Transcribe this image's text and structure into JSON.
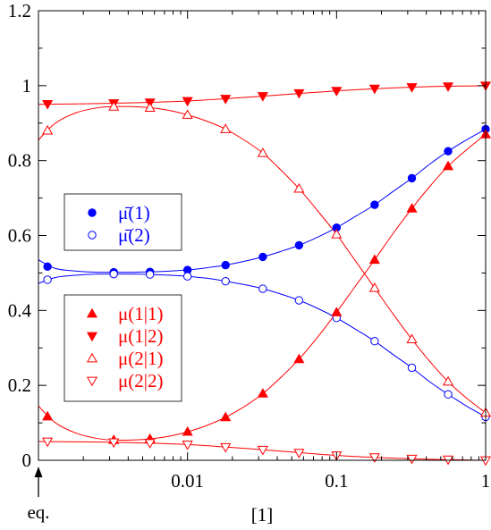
{
  "chart_data": {
    "type": "line",
    "xscale": "log",
    "xlim": [
      0.001,
      1
    ],
    "ylim": [
      0,
      1.2
    ],
    "xlabel": "[1]",
    "ylabel": "",
    "x_ticks": [
      {
        "value": 0.01,
        "label": "0.01"
      },
      {
        "value": 0.1,
        "label": "0.1"
      },
      {
        "value": 1,
        "label": "1"
      }
    ],
    "y_ticks": [
      {
        "value": 0,
        "label": "0"
      },
      {
        "value": 0.2,
        "label": "0.2"
      },
      {
        "value": 0.4,
        "label": "0.4"
      },
      {
        "value": 0.6,
        "label": "0.6"
      },
      {
        "value": 0.8,
        "label": "0.8"
      },
      {
        "value": 1,
        "label": "1"
      },
      {
        "value": 1.2,
        "label": "1.2"
      }
    ],
    "eq_marker_label": "eq.",
    "grid": false,
    "legends": [
      {
        "placement": "middle-left",
        "entries": [
          0,
          1
        ]
      },
      {
        "placement": "lower-left",
        "entries": [
          2,
          3,
          4,
          5
        ]
      }
    ],
    "series": [
      {
        "name": "μ̄(1)",
        "color": "#0000ff",
        "marker": "filled-circle",
        "x": [
          0.00115,
          0.0032,
          0.0056,
          0.01,
          0.018,
          0.032,
          0.056,
          0.1,
          0.18,
          0.32,
          0.56,
          1.0
        ],
        "y": [
          0.517,
          0.502,
          0.503,
          0.508,
          0.521,
          0.543,
          0.574,
          0.621,
          0.682,
          0.753,
          0.825,
          0.884
        ],
        "curve": {
          "x": [
            0.001,
            0.0013,
            0.0018,
            0.0025,
            0.0032,
            0.0042,
            0.0056,
            0.0075,
            0.01,
            0.0135,
            0.018,
            0.024,
            0.032,
            0.042,
            0.056,
            0.075,
            0.1,
            0.135,
            0.18,
            0.24,
            0.32,
            0.42,
            0.56,
            0.75,
            1.0
          ],
          "y": [
            0.535,
            0.512,
            0.505,
            0.502,
            0.502,
            0.502,
            0.503,
            0.505,
            0.508,
            0.514,
            0.521,
            0.531,
            0.543,
            0.557,
            0.574,
            0.596,
            0.621,
            0.652,
            0.682,
            0.718,
            0.753,
            0.79,
            0.825,
            0.856,
            0.884
          ]
        }
      },
      {
        "name": "μ̄(2)",
        "color": "#0000ff",
        "marker": "open-circle",
        "x": [
          0.00115,
          0.0032,
          0.0056,
          0.01,
          0.018,
          0.032,
          0.056,
          0.1,
          0.18,
          0.32,
          0.56,
          1.0
        ],
        "y": [
          0.482,
          0.497,
          0.496,
          0.491,
          0.478,
          0.458,
          0.427,
          0.38,
          0.318,
          0.247,
          0.176,
          0.116
        ],
        "curve": {
          "x": [
            0.001,
            0.0013,
            0.0018,
            0.0025,
            0.0032,
            0.0042,
            0.0056,
            0.0075,
            0.01,
            0.0135,
            0.018,
            0.024,
            0.032,
            0.042,
            0.056,
            0.075,
            0.1,
            0.135,
            0.18,
            0.24,
            0.32,
            0.42,
            0.56,
            0.75,
            1.0
          ],
          "y": [
            0.472,
            0.488,
            0.494,
            0.497,
            0.497,
            0.497,
            0.496,
            0.494,
            0.491,
            0.486,
            0.478,
            0.469,
            0.458,
            0.444,
            0.427,
            0.405,
            0.38,
            0.349,
            0.318,
            0.282,
            0.247,
            0.21,
            0.176,
            0.144,
            0.116
          ]
        }
      },
      {
        "name": "μ(1|1)",
        "color": "#ff0000",
        "marker": "filled-triangle-up",
        "x": [
          0.00115,
          0.0032,
          0.0056,
          0.01,
          0.018,
          0.032,
          0.056,
          0.1,
          0.18,
          0.32,
          0.56,
          1.0
        ],
        "y": [
          0.117,
          0.054,
          0.057,
          0.076,
          0.115,
          0.178,
          0.27,
          0.395,
          0.535,
          0.672,
          0.785,
          0.87
        ],
        "curve": {
          "x": [
            0.001,
            0.0013,
            0.0018,
            0.0025,
            0.0032,
            0.0042,
            0.0056,
            0.0075,
            0.01,
            0.0135,
            0.018,
            0.024,
            0.032,
            0.042,
            0.056,
            0.075,
            0.1,
            0.135,
            0.18,
            0.24,
            0.32,
            0.42,
            0.56,
            0.75,
            1.0
          ],
          "y": [
            0.145,
            0.1,
            0.072,
            0.058,
            0.054,
            0.054,
            0.057,
            0.064,
            0.076,
            0.093,
            0.115,
            0.143,
            0.178,
            0.22,
            0.27,
            0.33,
            0.395,
            0.467,
            0.535,
            0.606,
            0.672,
            0.73,
            0.785,
            0.83,
            0.87
          ]
        }
      },
      {
        "name": "μ(1|2)",
        "color": "#ff0000",
        "marker": "filled-triangle-down",
        "x": [
          0.00115,
          0.0032,
          0.0056,
          0.01,
          0.018,
          0.032,
          0.056,
          0.1,
          0.18,
          0.32,
          0.56,
          1.0
        ],
        "y": [
          0.951,
          0.953,
          0.955,
          0.959,
          0.965,
          0.972,
          0.98,
          0.986,
          0.992,
          0.996,
          0.998,
          1.0
        ],
        "curve": {
          "x": [
            0.001,
            0.0032,
            0.01,
            0.032,
            0.1,
            0.32,
            1.0
          ],
          "y": [
            0.95,
            0.953,
            0.959,
            0.972,
            0.986,
            0.996,
            1.0
          ]
        }
      },
      {
        "name": "μ(2|1)",
        "color": "#ff0000",
        "marker": "open-triangle-up",
        "x": [
          0.00115,
          0.0032,
          0.0056,
          0.01,
          0.018,
          0.032,
          0.056,
          0.1,
          0.18,
          0.32,
          0.56,
          1.0
        ],
        "y": [
          0.88,
          0.944,
          0.941,
          0.922,
          0.884,
          0.82,
          0.725,
          0.603,
          0.46,
          0.323,
          0.21,
          0.127
        ],
        "curve": {
          "x": [
            0.001,
            0.0013,
            0.0018,
            0.0025,
            0.0032,
            0.0042,
            0.0056,
            0.0075,
            0.01,
            0.0135,
            0.018,
            0.024,
            0.032,
            0.042,
            0.056,
            0.075,
            0.1,
            0.135,
            0.18,
            0.24,
            0.32,
            0.42,
            0.56,
            0.75,
            1.0
          ],
          "y": [
            0.855,
            0.9,
            0.928,
            0.941,
            0.944,
            0.944,
            0.941,
            0.934,
            0.922,
            0.905,
            0.884,
            0.855,
            0.82,
            0.776,
            0.725,
            0.665,
            0.603,
            0.53,
            0.46,
            0.39,
            0.323,
            0.265,
            0.21,
            0.165,
            0.127
          ]
        }
      },
      {
        "name": "μ(2|2)",
        "color": "#ff0000",
        "marker": "open-triangle-down",
        "x": [
          0.00115,
          0.0032,
          0.0056,
          0.01,
          0.018,
          0.032,
          0.056,
          0.1,
          0.18,
          0.32,
          0.56,
          1.0
        ],
        "y": [
          0.05,
          0.048,
          0.046,
          0.042,
          0.035,
          0.028,
          0.02,
          0.013,
          0.008,
          0.004,
          0.002,
          0.0
        ],
        "curve": {
          "x": [
            0.001,
            0.0032,
            0.01,
            0.032,
            0.1,
            0.32,
            1.0
          ],
          "y": [
            0.05,
            0.048,
            0.042,
            0.028,
            0.013,
            0.004,
            0.0
          ]
        }
      }
    ]
  }
}
